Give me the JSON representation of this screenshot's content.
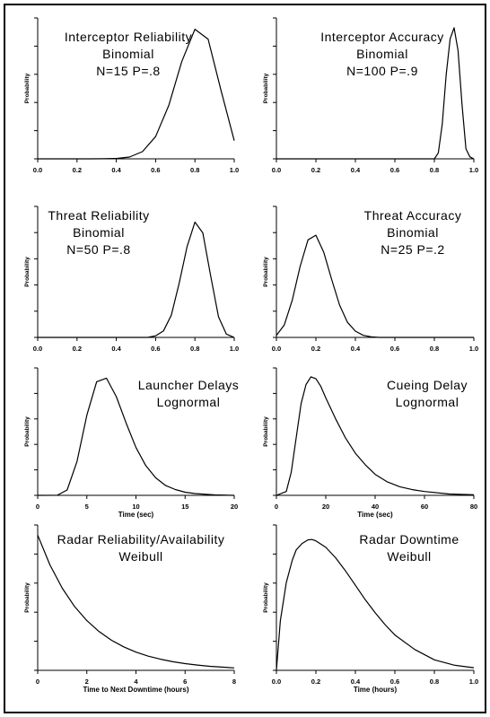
{
  "figure": {
    "border_color": "#000000",
    "curve_color": "#000000"
  },
  "chart_data": [
    {
      "type": "line",
      "title": [
        "Interceptor Reliability",
        "Binomial",
        "N=15  P=.8"
      ],
      "xlabel": "",
      "ylabel": "Probability",
      "xlim": [
        0,
        1
      ],
      "xticks": [
        "0.0",
        "0.2",
        "0.4",
        "0.6",
        "0.8",
        "1.0"
      ],
      "yticks": 5,
      "x": [
        0.0,
        0.067,
        0.133,
        0.2,
        0.267,
        0.333,
        0.4,
        0.467,
        0.533,
        0.6,
        0.667,
        0.733,
        0.8,
        0.867,
        0.933,
        1.0
      ],
      "y": [
        0,
        0,
        0,
        0,
        0,
        0.0001,
        0.0007,
        0.0035,
        0.0138,
        0.043,
        0.1032,
        0.1876,
        0.2501,
        0.231,
        0.1319,
        0.0352
      ]
    },
    {
      "type": "line",
      "title": [
        "Interceptor Accuracy",
        "Binomial",
        "N=100  P=.9"
      ],
      "xlabel": "",
      "ylabel": "Probability",
      "xlim": [
        0,
        1
      ],
      "xticks": [
        "0.0",
        "0.2",
        "0.4",
        "0.6",
        "0.8",
        "1.0"
      ],
      "yticks": 5,
      "x": [
        0.0,
        0.8,
        0.82,
        0.84,
        0.86,
        0.88,
        0.9,
        0.92,
        0.94,
        0.96,
        0.98,
        1.0
      ],
      "y": [
        0,
        0,
        0.006,
        0.035,
        0.085,
        0.121,
        0.132,
        0.109,
        0.055,
        0.01,
        0.002,
        0
      ]
    },
    {
      "type": "line",
      "title": [
        "Threat Reliability",
        "Binomial",
        "N=50  P=.8"
      ],
      "xlabel": "",
      "ylabel": "Probability",
      "xlim": [
        0,
        1
      ],
      "xticks": [
        "0.0",
        "0.2",
        "0.4",
        "0.6",
        "0.8",
        "1.0"
      ],
      "yticks": 5,
      "x": [
        0.0,
        0.56,
        0.6,
        0.64,
        0.68,
        0.72,
        0.76,
        0.8,
        0.84,
        0.88,
        0.92,
        0.96,
        1.0
      ],
      "y": [
        0,
        0,
        0.002,
        0.008,
        0.027,
        0.066,
        0.11,
        0.14,
        0.127,
        0.075,
        0.025,
        0.004,
        0
      ]
    },
    {
      "type": "line",
      "title": [
        "Threat Accuracy",
        "Binomial",
        "N=25  P=.2"
      ],
      "xlabel": "",
      "ylabel": "Probability",
      "xlim": [
        0,
        1
      ],
      "xticks": [
        "0.0",
        "0.2",
        "0.4",
        "0.6",
        "0.8",
        "1.0"
      ],
      "yticks": 5,
      "x": [
        0.0,
        0.04,
        0.08,
        0.12,
        0.16,
        0.2,
        0.24,
        0.28,
        0.32,
        0.36,
        0.4,
        0.44,
        0.48,
        0.52,
        0.56,
        1.0
      ],
      "y": [
        0.004,
        0.024,
        0.071,
        0.136,
        0.187,
        0.196,
        0.163,
        0.111,
        0.062,
        0.029,
        0.012,
        0.004,
        0.001,
        0,
        0,
        0
      ]
    },
    {
      "type": "line",
      "title": [
        "Launcher Delays",
        "Lognormal"
      ],
      "xlabel": "Time (sec)",
      "ylabel": "Probability",
      "xlim": [
        0,
        20
      ],
      "xticks": [
        "0",
        "5",
        "10",
        "15",
        "20"
      ],
      "yticks": 5,
      "x": [
        0,
        2,
        3,
        4,
        5,
        6,
        7,
        8,
        9,
        10,
        11,
        12,
        13,
        14,
        15,
        16,
        18,
        20
      ],
      "y": [
        0,
        0.0002,
        0.012,
        0.075,
        0.178,
        0.252,
        0.26,
        0.219,
        0.16,
        0.106,
        0.066,
        0.039,
        0.022,
        0.013,
        0.007,
        0.004,
        0.001,
        0
      ]
    },
    {
      "type": "line",
      "title": [
        "Cueing Delay",
        "Lognormal"
      ],
      "xlabel": "Time (sec)",
      "ylabel": "Probability",
      "xlim": [
        0,
        80
      ],
      "xticks": [
        "0",
        "20",
        "40",
        "60",
        "80"
      ],
      "yticks": 5,
      "x": [
        0,
        4,
        6,
        8,
        10,
        12,
        14,
        16,
        18,
        20,
        24,
        28,
        32,
        36,
        40,
        45,
        50,
        55,
        60,
        70,
        80
      ],
      "y": [
        0,
        0.002,
        0.012,
        0.03,
        0.048,
        0.058,
        0.062,
        0.061,
        0.057,
        0.051,
        0.04,
        0.03,
        0.022,
        0.016,
        0.011,
        0.007,
        0.0045,
        0.003,
        0.002,
        0.0007,
        0.0003
      ]
    },
    {
      "type": "line",
      "title": [
        "Radar Reliability/Availability",
        "Weibull"
      ],
      "xlabel": "Time to Next Downtime (hours)",
      "ylabel": "Probability",
      "xlim": [
        0,
        8
      ],
      "xticks": [
        "0",
        "2",
        "4",
        "6",
        "8"
      ],
      "yticks": 5,
      "x": [
        0,
        0.5,
        1,
        1.5,
        2,
        2.5,
        3,
        3.5,
        4,
        4.5,
        5,
        5.5,
        6,
        6.5,
        7,
        7.5,
        8
      ],
      "y": [
        1.0,
        0.779,
        0.607,
        0.472,
        0.368,
        0.287,
        0.223,
        0.174,
        0.135,
        0.105,
        0.082,
        0.064,
        0.05,
        0.039,
        0.03,
        0.024,
        0.018
      ]
    },
    {
      "type": "line",
      "title": [
        "Radar Downtime",
        "Weibull"
      ],
      "xlabel": "Time (hours)",
      "ylabel": "Probability",
      "xlim": [
        0,
        1
      ],
      "xticks": [
        "0.0",
        "0.2",
        "0.4",
        "0.6",
        "0.8",
        "1.0"
      ],
      "yticks": 5,
      "x": [
        0,
        0.02,
        0.05,
        0.08,
        0.1,
        0.13,
        0.16,
        0.18,
        0.2,
        0.25,
        0.3,
        0.35,
        0.4,
        0.45,
        0.5,
        0.55,
        0.6,
        0.7,
        0.8,
        0.9,
        1.0
      ],
      "y": [
        0,
        0.38,
        0.67,
        0.84,
        0.92,
        0.97,
        0.997,
        1.0,
        0.99,
        0.94,
        0.86,
        0.76,
        0.65,
        0.54,
        0.44,
        0.35,
        0.27,
        0.16,
        0.08,
        0.04,
        0.02
      ]
    }
  ]
}
